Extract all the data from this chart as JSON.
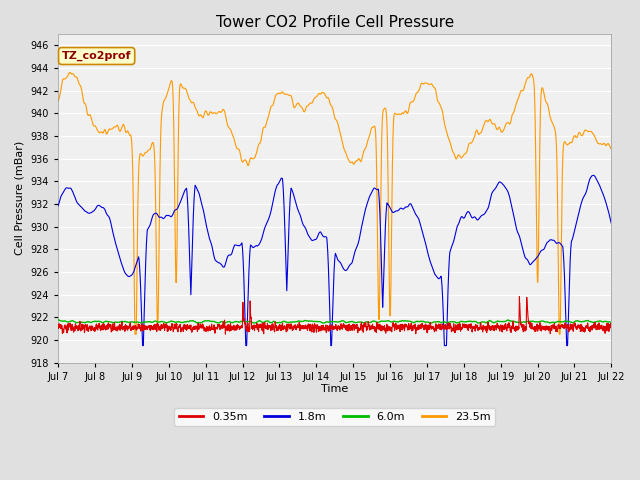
{
  "title": "Tower CO2 Profile Cell Pressure",
  "ylabel": "Cell Pressure (mBar)",
  "xlabel": "Time",
  "annotation": "TZ_co2prof",
  "ylim": [
    918,
    947
  ],
  "yticks": [
    918,
    920,
    922,
    924,
    926,
    928,
    930,
    932,
    934,
    936,
    938,
    940,
    942,
    944,
    946
  ],
  "xlim": [
    7,
    22
  ],
  "xtick_positions": [
    7,
    8,
    9,
    10,
    11,
    12,
    13,
    14,
    15,
    16,
    17,
    18,
    19,
    20,
    21,
    22
  ],
  "xtick_labels": [
    "Jul 7",
    "Jul 8",
    "Jul 9",
    "Jul 10",
    "Jul 11",
    "Jul 12",
    "Jul 13",
    "Jul 14",
    "Jul 15",
    "Jul 16",
    "Jul 17",
    "Jul 18",
    "Jul 19",
    "Jul 20",
    "Jul 21",
    "Jul 22"
  ],
  "series_colors": {
    "0.35m": "#dd0000",
    "1.8m": "#0000dd",
    "6.0m": "#00bb00",
    "23.5m": "#ff9900"
  },
  "series_lw": {
    "0.35m": 0.8,
    "1.8m": 0.8,
    "6.0m": 1.0,
    "23.5m": 0.8
  },
  "bg_color": "#e0e0e0",
  "plot_bg_color": "#f0f0f0",
  "title_fontsize": 11,
  "label_fontsize": 8,
  "tick_fontsize": 7,
  "legend_fontsize": 8
}
